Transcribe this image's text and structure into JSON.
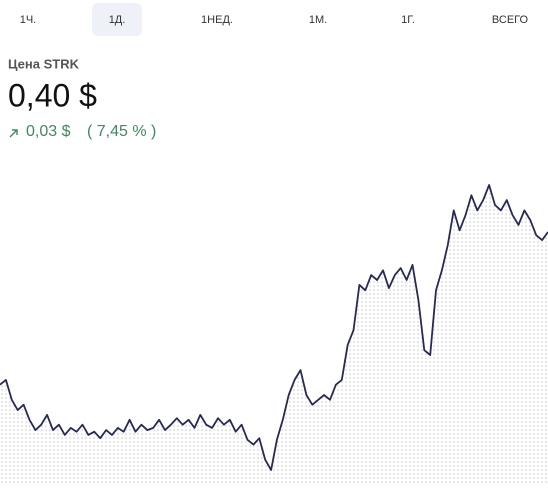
{
  "tabs": [
    "1Ч.",
    "1Д.",
    "1НЕД.",
    "1М.",
    "1Г.",
    "ВСЕГО"
  ],
  "active_tab": 1,
  "price": {
    "label": "Цена STRK",
    "value": "0,40 $",
    "change": "0,03 $",
    "change_percent": "( 7,45 % )"
  },
  "chart_data": {
    "type": "line",
    "color": "#262a55",
    "values": [
      0.3723,
      0.3732,
      0.3695,
      0.3676,
      0.3686,
      0.3658,
      0.3639,
      0.3649,
      0.3667,
      0.3639,
      0.3649,
      0.363,
      0.3643,
      0.3636,
      0.3649,
      0.363,
      0.3636,
      0.3624,
      0.3639,
      0.363,
      0.3643,
      0.3636,
      0.3658,
      0.3636,
      0.3649,
      0.3639,
      0.3643,
      0.3658,
      0.3639,
      0.3649,
      0.3661,
      0.3649,
      0.3658,
      0.3643,
      0.3667,
      0.3649,
      0.3643,
      0.3661,
      0.3649,
      0.3658,
      0.3636,
      0.3649,
      0.3621,
      0.3612,
      0.3624,
      0.3584,
      0.3565,
      0.3621,
      0.3658,
      0.3704,
      0.3732,
      0.375,
      0.3704,
      0.3686,
      0.3695,
      0.3704,
      0.3695,
      0.3723,
      0.3732,
      0.3797,
      0.3824,
      0.3908,
      0.3898,
      0.3926,
      0.3917,
      0.3935,
      0.3902,
      0.3926,
      0.3939,
      0.3917,
      0.3945,
      0.388,
      0.3787,
      0.3778,
      0.3898,
      0.3935,
      0.3982,
      0.4046,
      0.4009,
      0.4037,
      0.4074,
      0.4046,
      0.4065,
      0.4093,
      0.4056,
      0.4046,
      0.4065,
      0.4037,
      0.4019,
      0.4046,
      0.4028,
      0.4,
      0.3991,
      0.4006
    ]
  }
}
